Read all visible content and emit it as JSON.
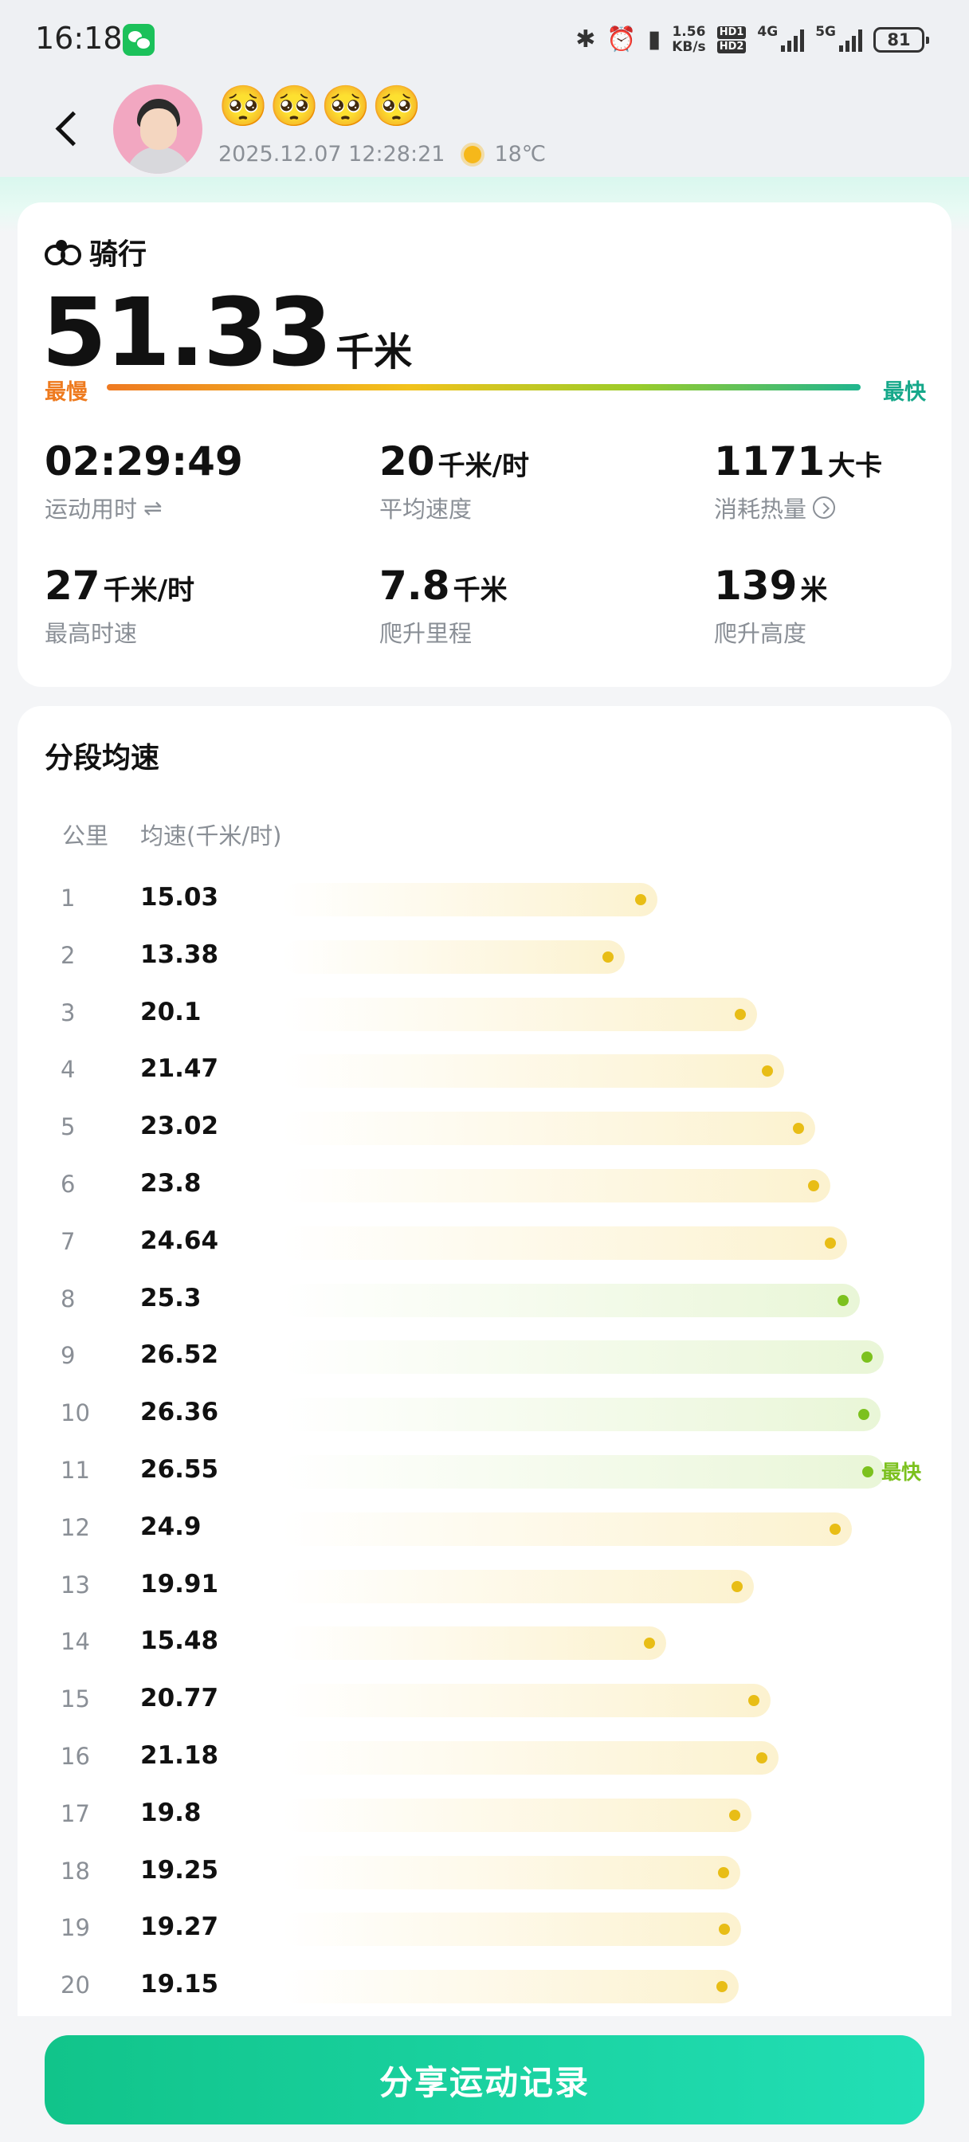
{
  "status_bar": {
    "time": "16:18",
    "net_speed_value": "1.56",
    "net_speed_unit": "KB/s",
    "hd1": "HD1",
    "hd2": "HD2",
    "net_4g": "4G",
    "net_5g": "5G",
    "battery": "81"
  },
  "header": {
    "username": "🥺🥺🥺🥺",
    "datetime": "2025.12.07 12:28:21",
    "temperature": "18℃"
  },
  "summary": {
    "sport": "骑行",
    "distance": "51.33",
    "distance_unit": "千米",
    "slowest_label": "最慢",
    "fastest_label": "最快",
    "stats": [
      {
        "value": "02:29:49",
        "unit": "",
        "label": "运动用时"
      },
      {
        "value": "20",
        "unit": "千米/时",
        "label": "平均速度"
      },
      {
        "value": "1171",
        "unit": "大卡",
        "label": "消耗热量"
      },
      {
        "value": "27",
        "unit": "千米/时",
        "label": "最高时速"
      },
      {
        "value": "7.8",
        "unit": "千米",
        "label": "爬升里程"
      },
      {
        "value": "139",
        "unit": "米",
        "label": "爬升高度"
      }
    ]
  },
  "splits": {
    "title": "分段均速",
    "col_km": "公里",
    "col_speed": "均速(千米/时)",
    "fastest_tag": "最快",
    "rows": [
      {
        "km": "1",
        "speed": 15.03
      },
      {
        "km": "2",
        "speed": 13.38
      },
      {
        "km": "3",
        "speed": 20.1
      },
      {
        "km": "4",
        "speed": 21.47
      },
      {
        "km": "5",
        "speed": 23.02
      },
      {
        "km": "6",
        "speed": 23.8
      },
      {
        "km": "7",
        "speed": 24.64
      },
      {
        "km": "8",
        "speed": 25.3
      },
      {
        "km": "9",
        "speed": 26.52
      },
      {
        "km": "10",
        "speed": 26.36
      },
      {
        "km": "11",
        "speed": 26.55,
        "fastest": true
      },
      {
        "km": "12",
        "speed": 24.9
      },
      {
        "km": "13",
        "speed": 19.91
      },
      {
        "km": "14",
        "speed": 15.48
      },
      {
        "km": "15",
        "speed": 20.77
      },
      {
        "km": "16",
        "speed": 21.18
      },
      {
        "km": "17",
        "speed": 19.8
      },
      {
        "km": "18",
        "speed": 19.25
      },
      {
        "km": "19",
        "speed": 19.27
      },
      {
        "km": "20",
        "speed": 19.15
      }
    ]
  },
  "share_button": "分享运动记录",
  "colors": {
    "accent": "#16a88a",
    "slow": "#ee7a1e",
    "fast_tag": "#7cc11e"
  }
}
